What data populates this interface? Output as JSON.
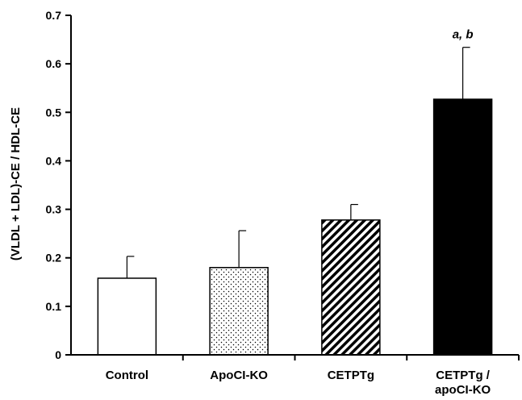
{
  "chart_data": {
    "type": "bar",
    "title": "",
    "xlabel": "",
    "ylabel": "(VLDL + LDL)-CE / HDL-CE",
    "ylim": [
      0,
      0.7
    ],
    "yticks": [
      "0",
      "0.1",
      "0.2",
      "0.3",
      "0.4",
      "0.5",
      "0.6",
      "0.7"
    ],
    "grid": false,
    "categories": [
      [
        "Control"
      ],
      [
        "ApoCI-KO"
      ],
      [
        "CETPTg"
      ],
      [
        "CETPTg /",
        "apoCI-KO"
      ]
    ],
    "values": [
      0.158,
      0.18,
      0.278,
      0.527
    ],
    "error_upper": [
      0.045,
      0.076,
      0.032,
      0.107
    ],
    "fills": [
      "white",
      "dots",
      "diagonal-stripes",
      "black"
    ],
    "annotations": [
      {
        "category_index": 3,
        "text": "a, b"
      }
    ]
  }
}
